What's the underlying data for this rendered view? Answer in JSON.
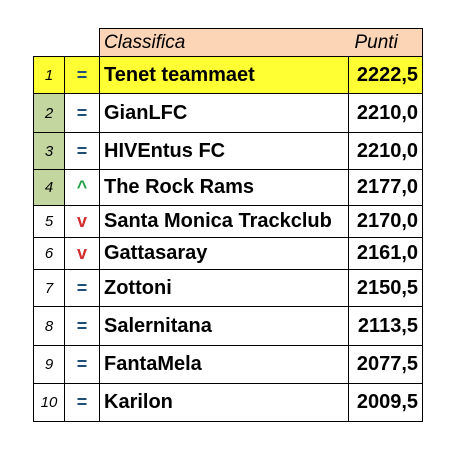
{
  "header": {
    "title": "Classifica",
    "points_label": "Punti"
  },
  "colors": {
    "header_bg": "#fbd5b5",
    "highlight_row": "#ffff33",
    "green_position": "#c4d6a0",
    "trend_equal": "#1f4e79",
    "trend_up": "#22a34a",
    "trend_down": "#d32f2f"
  },
  "rows": [
    {
      "pos": "1",
      "trend": "=",
      "team": "Tenet teammaet",
      "points": "2222,5"
    },
    {
      "pos": "2",
      "trend": "=",
      "team": "GianLFC",
      "points": "2210,0"
    },
    {
      "pos": "3",
      "trend": "=",
      "team": "HIVEntus FC",
      "points": "2210,0"
    },
    {
      "pos": "4",
      "trend": "^",
      "team": "The Rock Rams",
      "points": "2177,0"
    },
    {
      "pos": "5",
      "trend": "v",
      "team": "Santa Monica Trackclub",
      "points": "2170,0"
    },
    {
      "pos": "6",
      "trend": "v",
      "team": "Gattasaray",
      "points": "2161,0"
    },
    {
      "pos": "7",
      "trend": "=",
      "team": "Zottoni",
      "points": "2150,5"
    },
    {
      "pos": "8",
      "trend": "=",
      "team": "Salernitana",
      "points": "2113,5"
    },
    {
      "pos": "9",
      "trend": "=",
      "team": "FantaMela",
      "points": "2077,5"
    },
    {
      "pos": "10",
      "trend": "=",
      "team": "Karilon",
      "points": "2009,5"
    }
  ]
}
